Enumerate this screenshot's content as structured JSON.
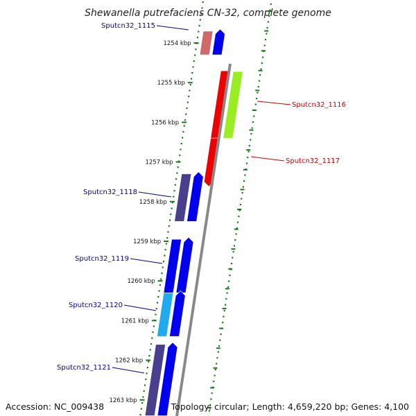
{
  "title": "Shewanella putrefaciens CN-32, complete genome",
  "footer": {
    "accession": "Accession: NC_009438",
    "summary": "Topology: circular; Length: 4,659,220 bp; Genes: 4,100"
  },
  "colors": {
    "backbone": "#888888",
    "tick": "#1a7a1a",
    "label_forward": "#00008b",
    "label_reverse": "#cc0000"
  },
  "ticks": [
    {
      "kbp": 1254,
      "label": "1254 kbp"
    },
    {
      "kbp": 1255,
      "label": "1255 kbp"
    },
    {
      "kbp": 1256,
      "label": "1256 kbp"
    },
    {
      "kbp": 1257,
      "label": "1257 kbp"
    },
    {
      "kbp": 1258,
      "label": "1258 kbp"
    },
    {
      "kbp": 1259,
      "label": "1259 kbp"
    },
    {
      "kbp": 1260,
      "label": "1260 kbp"
    },
    {
      "kbp": 1261,
      "label": "1261 kbp"
    },
    {
      "kbp": 1262,
      "label": "1262 kbp"
    },
    {
      "kbp": 1263,
      "label": "1263 kbp"
    }
  ],
  "genes": [
    {
      "id": "g1115",
      "label": "Sputcn32_1115",
      "strand": "forward",
      "start": 1253.7,
      "end": 1254.3,
      "color": "#d06a6a",
      "cds_color": "#0000ee",
      "labeled": true
    },
    {
      "id": "g1116",
      "label": "Sputcn32_1116",
      "strand": "reverse",
      "start": 1254.7,
      "end": 1256.4,
      "color": "#ee0000",
      "cds_color": "#99ee22",
      "labeled": true
    },
    {
      "id": "g1117",
      "label": "Sputcn32_1117",
      "strand": "reverse",
      "start": 1256.4,
      "end": 1257.5,
      "color": "#ee0000",
      "cds_color": null,
      "labeled": true
    },
    {
      "id": "g1118",
      "label": "Sputcn32_1118",
      "strand": "forward",
      "start": 1257.3,
      "end": 1258.5,
      "color": "#4a3f8c",
      "cds_color": "#0000ee",
      "labeled": true
    },
    {
      "id": "g1119",
      "label": "Sputcn32_1119",
      "strand": "forward",
      "start": 1258.95,
      "end": 1260.3,
      "color": "#0000ee",
      "cds_color": "#0000ee",
      "labeled": true
    },
    {
      "id": "g1120",
      "label": "Sputcn32_1120",
      "strand": "forward",
      "start": 1260.3,
      "end": 1261.4,
      "color": "#22aaee",
      "cds_color": "#0000ee",
      "labeled": true
    },
    {
      "id": "g1121",
      "label": "Sputcn32_1121",
      "strand": "forward",
      "start": 1261.6,
      "end": 1263.4,
      "color": "#4a3f8c",
      "cds_color": "#0000ee",
      "labeled": true
    }
  ]
}
